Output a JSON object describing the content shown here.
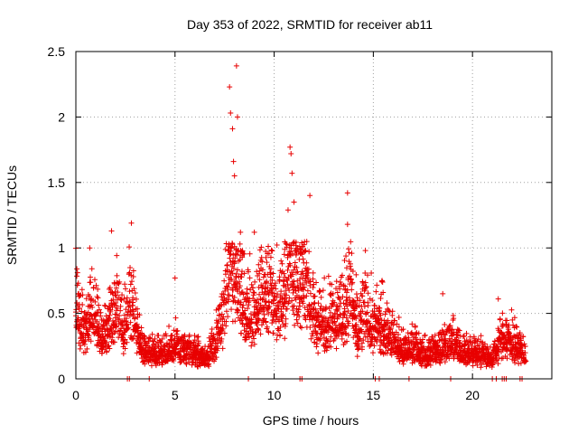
{
  "chart_data": {
    "type": "scatter",
    "title": "Day 353 of 2022, SRMTID for receiver ab11",
    "xlabel": "GPS time / hours",
    "ylabel": "SRMTID / TECUs",
    "xlim": [
      0,
      24
    ],
    "ylim": [
      0,
      2.5
    ],
    "x_ticks": [
      0,
      5,
      10,
      15,
      20
    ],
    "x_tick_labels": [
      "0",
      "5",
      "10",
      "15",
      "20"
    ],
    "y_ticks": [
      0,
      0.5,
      1,
      1.5,
      2,
      2.5
    ],
    "y_tick_labels": [
      "0",
      "0.5",
      "1",
      "1.5",
      "2",
      "2.5"
    ],
    "grid": true,
    "marker": "+",
    "marker_color": "#e80000",
    "series": [
      {
        "name": "SRMTID",
        "profile": [
          [
            0.0,
            0.55
          ],
          [
            0.3,
            0.38
          ],
          [
            0.6,
            0.42
          ],
          [
            0.9,
            0.55
          ],
          [
            1.2,
            0.32
          ],
          [
            1.5,
            0.35
          ],
          [
            1.8,
            0.45
          ],
          [
            2.1,
            0.55
          ],
          [
            2.4,
            0.38
          ],
          [
            2.7,
            0.6
          ],
          [
            3.0,
            0.45
          ],
          [
            3.3,
            0.25
          ],
          [
            3.6,
            0.2
          ],
          [
            4.0,
            0.18
          ],
          [
            4.5,
            0.22
          ],
          [
            5.0,
            0.25
          ],
          [
            5.5,
            0.2
          ],
          [
            6.0,
            0.2
          ],
          [
            6.5,
            0.15
          ],
          [
            7.0,
            0.25
          ],
          [
            7.4,
            0.45
          ],
          [
            7.8,
            0.85
          ],
          [
            8.2,
            0.75
          ],
          [
            8.6,
            0.5
          ],
          [
            9.0,
            0.5
          ],
          [
            9.5,
            0.7
          ],
          [
            10.0,
            0.55
          ],
          [
            10.5,
            0.6
          ],
          [
            10.8,
            0.95
          ],
          [
            11.2,
            0.7
          ],
          [
            11.6,
            0.75
          ],
          [
            12.0,
            0.45
          ],
          [
            12.5,
            0.4
          ],
          [
            13.0,
            0.5
          ],
          [
            13.5,
            0.45
          ],
          [
            13.8,
            0.7
          ],
          [
            14.2,
            0.35
          ],
          [
            14.6,
            0.5
          ],
          [
            15.0,
            0.4
          ],
          [
            15.5,
            0.4
          ],
          [
            16.0,
            0.3
          ],
          [
            16.5,
            0.2
          ],
          [
            17.0,
            0.25
          ],
          [
            17.5,
            0.18
          ],
          [
            18.0,
            0.2
          ],
          [
            18.5,
            0.25
          ],
          [
            19.0,
            0.28
          ],
          [
            19.5,
            0.2
          ],
          [
            20.0,
            0.2
          ],
          [
            20.5,
            0.18
          ],
          [
            21.0,
            0.15
          ],
          [
            21.4,
            0.28
          ],
          [
            21.8,
            0.32
          ],
          [
            22.2,
            0.25
          ],
          [
            22.7,
            0.19
          ]
        ],
        "peaks": [
          [
            0.05,
            0.84
          ],
          [
            0.7,
            1.0
          ],
          [
            1.8,
            1.13
          ],
          [
            2.8,
            1.19
          ],
          [
            2.9,
            0.78
          ],
          [
            5.0,
            0.77
          ],
          [
            7.75,
            2.23
          ],
          [
            7.8,
            2.03
          ],
          [
            7.9,
            1.91
          ],
          [
            7.95,
            1.66
          ],
          [
            8.0,
            1.55
          ],
          [
            8.1,
            2.39
          ],
          [
            8.15,
            2.0
          ],
          [
            8.3,
            1.12
          ],
          [
            9.0,
            1.12
          ],
          [
            10.7,
            1.29
          ],
          [
            10.8,
            1.77
          ],
          [
            10.85,
            1.72
          ],
          [
            10.9,
            1.57
          ],
          [
            11.0,
            1.35
          ],
          [
            11.8,
            1.4
          ],
          [
            13.7,
            1.42
          ],
          [
            13.7,
            1.18
          ],
          [
            14.6,
            0.98
          ],
          [
            18.5,
            0.65
          ],
          [
            21.3,
            0.61
          ]
        ],
        "zero_points_x": [
          2.6,
          2.7,
          3.7,
          8.7,
          11.3,
          11.4,
          15.1,
          15.3,
          16.8,
          18.9,
          21.0,
          21.2,
          21.5,
          21.6,
          21.7,
          22.4,
          22.5
        ]
      }
    ]
  }
}
